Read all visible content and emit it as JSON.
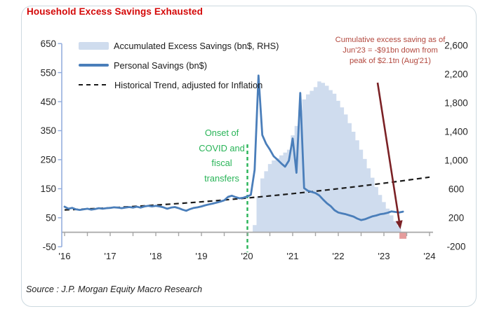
{
  "title": "Household Excess Savings Exhausted",
  "source": "Source : J.P. Morgan Equity Macro Research",
  "legend": {
    "items": [
      {
        "label": "Accumulated Excess Savings (bn$, RHS)",
        "swatch": "area-swatch"
      },
      {
        "label": "Personal Savings (bn$)",
        "swatch": "line-swatch"
      },
      {
        "label": "Historical Trend, adjusted for Inflation",
        "swatch": "dash-swatch"
      }
    ]
  },
  "annotations": {
    "covid_onset": {
      "text_lines": [
        "Onset of",
        "COVID and",
        "fiscal",
        "transfers"
      ]
    },
    "cumulative_note": {
      "text_lines": [
        "Cumulative excess saving as of",
        "Jun'23 = -$91bn down from",
        "peak of $2.1tn (Aug'21)"
      ]
    }
  },
  "colors": {
    "title_red": "#d40808",
    "annotation_red": "#b3493f",
    "arrow_maroon": "#7b2125",
    "covid_green": "#28b457",
    "line_blue": "#4a7eba",
    "area_blue": "#cfdcee",
    "negative_pink": "#e59c9c",
    "axis_blue": "#8faadc",
    "axis_gray": "#a6a6a6",
    "trend_black": "#1a1a1a",
    "tick_text": "#262626"
  },
  "chart_data": {
    "type": "combo: step-area + line + dashed trend",
    "title": "Household Excess Savings Exhausted",
    "xlabel": "",
    "ylabel_left": "Personal Savings (bn$)",
    "ylabel_right": "Accumulated Excess Savings (bn$)",
    "x_axis": {
      "tick_labels": [
        "'16",
        "'17",
        "'18",
        "'19",
        "'20",
        "'21",
        "'22",
        "'23",
        "'24"
      ],
      "tick_years": [
        2016,
        2017,
        2018,
        2019,
        2020,
        2021,
        2022,
        2023,
        2024
      ],
      "minor_tick_interval_years": 0.5,
      "range_years": [
        2016,
        2024.1
      ]
    },
    "left_axis": {
      "tick_labels": [
        "650",
        "550",
        "450",
        "350",
        "250",
        "150",
        "50",
        "-50"
      ],
      "tick_values": [
        650,
        550,
        450,
        350,
        250,
        150,
        50,
        -50
      ],
      "range": [
        -50,
        650
      ]
    },
    "right_axis": {
      "tick_labels": [
        "2,600",
        "2,200",
        "1,800",
        "1,400",
        "1,000",
        "600",
        "200",
        "-200"
      ],
      "tick_values": [
        2600,
        2200,
        1800,
        1400,
        1000,
        600,
        200,
        -200
      ],
      "range": [
        -200,
        2600
      ]
    },
    "grid": false,
    "legend_position": "top-left inside plot",
    "series": [
      {
        "name": "Personal Savings (bn$)",
        "type": "line",
        "axis": "left",
        "frequency": "monthly",
        "start_year": 2016,
        "start_month": 1,
        "values": [
          88,
          81,
          84,
          79,
          77,
          79,
          81,
          78,
          80,
          83,
          81,
          83,
          84,
          86,
          85,
          83,
          85,
          87,
          85,
          88,
          85,
          89,
          91,
          89,
          91,
          89,
          86,
          81,
          85,
          87,
          83,
          78,
          74,
          80,
          84,
          86,
          89,
          93,
          96,
          99,
          102,
          106,
          110,
          122,
          126,
          121,
          117,
          119,
          123,
          129,
          215,
          540,
          335,
          305,
          285,
          262,
          250,
          237,
          226,
          247,
          323,
          205,
          480,
          152,
          143,
          139,
          135,
          127,
          113,
          100,
          90,
          76,
          68,
          65,
          62,
          58,
          54,
          47,
          42,
          45,
          50,
          55,
          58,
          62,
          64,
          67,
          72,
          70,
          68,
          71
        ]
      },
      {
        "name": "Accumulated Excess Savings (bn$, RHS)",
        "type": "step-area",
        "axis": "right",
        "frequency": "monthly",
        "start_year": 2020,
        "start_month": 3,
        "values": [
          100,
          500,
          750,
          850,
          950,
          1000,
          1030,
          1070,
          1110,
          1150,
          1350,
          1480,
          1700,
          1850,
          1920,
          1970,
          2020,
          2100,
          2080,
          2040,
          1980,
          1930,
          1830,
          1740,
          1640,
          1520,
          1400,
          1280,
          1150,
          1020,
          890,
          760,
          630,
          520,
          420,
          330,
          235,
          155,
          90,
          -91
        ],
        "peak_note": "peak of $2.1tn (Aug'21)",
        "final_note": "Jun'23 = -$91bn"
      },
      {
        "name": "Historical Trend, adjusted for Inflation",
        "type": "dashed-line",
        "axis": "left",
        "points": [
          [
            2016.0,
            77
          ],
          [
            2020.0,
            118
          ],
          [
            2024.0,
            190
          ]
        ]
      }
    ],
    "events": {
      "covid_line_year": 2020.0,
      "negative_bar": {
        "year_frac": 2023.4167,
        "value": -91
      }
    }
  }
}
